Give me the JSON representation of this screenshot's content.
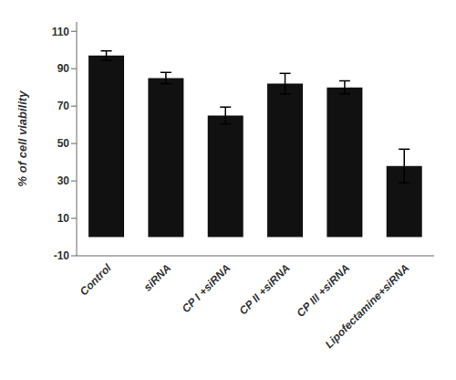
{
  "chart_data": {
    "type": "bar",
    "categories": [
      "Control",
      "siRNA",
      "CP I +siRNA",
      "CP II +siRNA",
      "CP III +siRNA",
      "Lipofectamine+siRNA"
    ],
    "values": [
      97.0,
      85.0,
      65.0,
      82.0,
      80.0,
      38.0
    ],
    "errors": [
      2.5,
      3.0,
      4.5,
      5.5,
      3.5,
      9.0
    ],
    "color": "#111111",
    "ylabel": "% of cell viability",
    "ylim": [
      -10,
      115
    ],
    "yticks": [
      -10,
      10,
      30,
      50,
      70,
      90,
      110
    ]
  }
}
